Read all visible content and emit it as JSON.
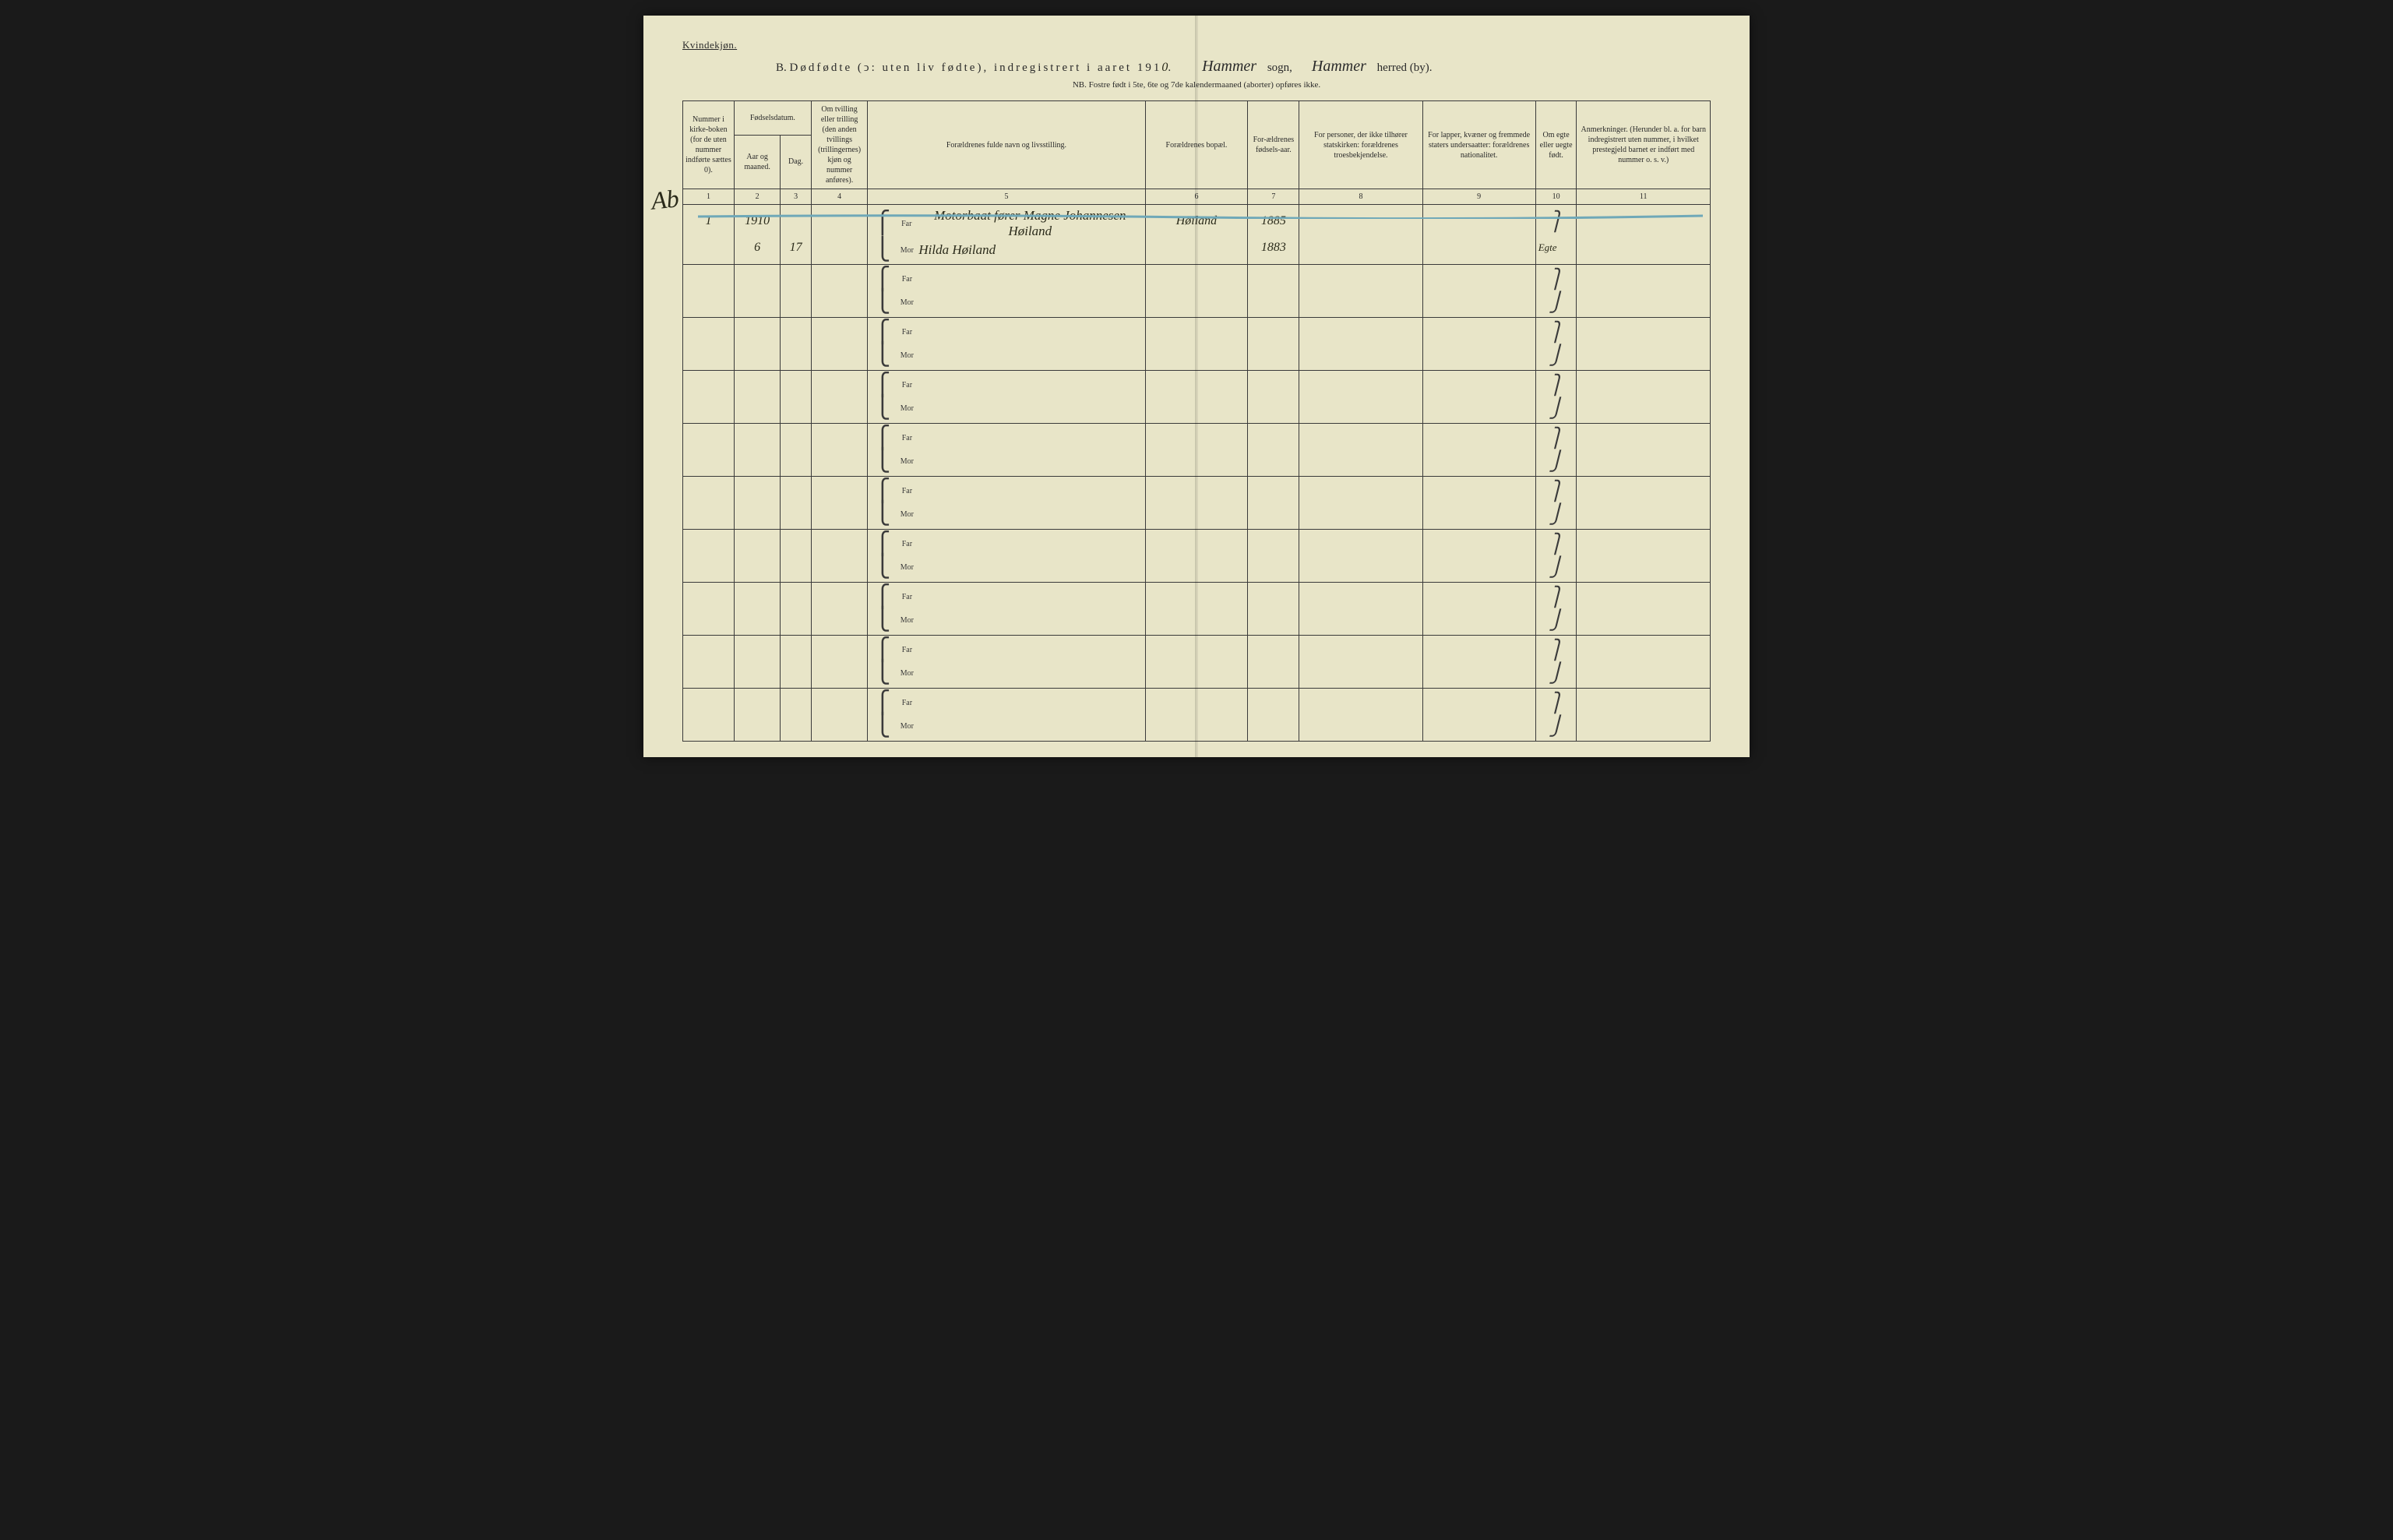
{
  "header": {
    "gender_label": "Kvindekjøn.",
    "title_prefix": "B.",
    "title_main": "Dødfødte (ↄ: uten liv fødte), indregistrert i aaret 191",
    "title_year_suffix": "0",
    "sogn_value": "Hammer",
    "sogn_label": "sogn,",
    "herred_value": "Hammer",
    "herred_label": "herred (by).",
    "nb_line": "NB.  Fostre født i 5te, 6te og 7de kalendermaaned (aborter) opføres ikke."
  },
  "columns": {
    "c1": "Nummer i kirke-boken (for de uten nummer indførte sættes 0).",
    "c2_top": "Fødselsdatum.",
    "c2a": "Aar og maaned.",
    "c2b": "Dag.",
    "c4": "Om tvilling eller trilling (den anden tvillings (trillingernes) kjøn og nummer anføres).",
    "c5": "Forældrenes fulde navn og livsstilling.",
    "c6": "Forældrenes bopæl.",
    "c7": "For-ældrenes fødsels-aar.",
    "c8": "For personer, der ikke tilhører statskirken: forældrenes troesbekjendelse.",
    "c9": "For lapper, kvæner og fremmede staters undersaatter: forældrenes nationalitet.",
    "c10": "Om egte eller uegte født.",
    "c11": "Anmerkninger. (Herunder bl. a. for barn indregistrert uten nummer, i hvilket prestegjeld barnet er indført med nummer o. s. v.)"
  },
  "col_numbers": [
    "1",
    "2",
    "3",
    "4",
    "5",
    "6",
    "7",
    "8",
    "9",
    "10",
    "11"
  ],
  "labels": {
    "far": "Far",
    "mor": "Mor"
  },
  "entry": {
    "margin_note": "Ab",
    "row_number": "1",
    "year": "1910",
    "month": "6",
    "day": "17",
    "far_text": "Motorbaat fører Magne Johannesen Høiland",
    "mor_text": "Hilda Høiland",
    "bopel": "Høiland",
    "far_birth": "1885",
    "mor_birth": "1883",
    "egte": "Egte"
  },
  "colors": {
    "paper": "#e8e5c8",
    "ink": "#2a2a2a",
    "rule": "#3a3a3a",
    "strike": "#6fa8b8",
    "background": "#1a1a1a"
  },
  "layout": {
    "col_widths_pct": [
      5.0,
      4.5,
      3.0,
      5.5,
      27.0,
      10.0,
      5.0,
      12.0,
      11.0,
      4.0,
      13.0
    ],
    "num_empty_rows": 9
  }
}
